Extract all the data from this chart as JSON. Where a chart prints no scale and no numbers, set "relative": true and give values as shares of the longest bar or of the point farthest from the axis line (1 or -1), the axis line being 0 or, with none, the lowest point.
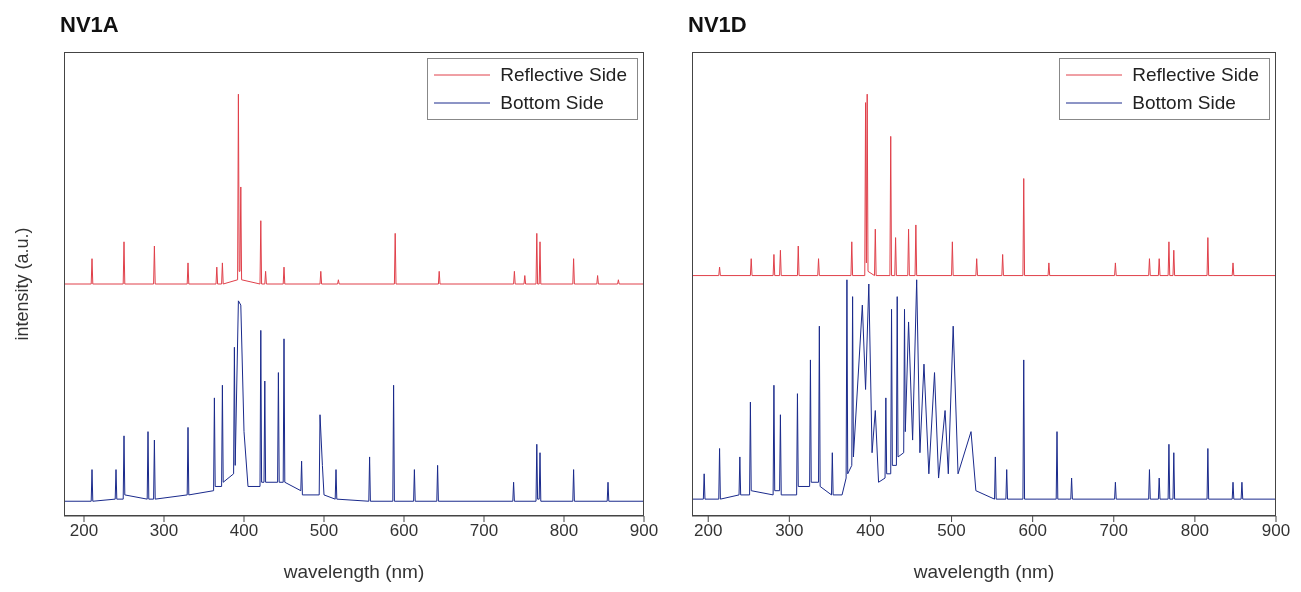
{
  "chart_data": [
    {
      "type": "line",
      "title": "NV1A",
      "xlabel": "wavelength (nm)",
      "ylabel": "intensity (a.u.)",
      "relative": true,
      "xlim": [
        175,
        900
      ],
      "xticks": [
        200,
        300,
        400,
        500,
        600,
        700,
        800,
        900
      ],
      "legend": "top right",
      "grid": false,
      "series": [
        {
          "name": "Reflective Side",
          "color": "#e0404a",
          "x": [
            175,
            209,
            210,
            211,
            249,
            250,
            251,
            287,
            288,
            289,
            329,
            330,
            331,
            365,
            366,
            367,
            372,
            373,
            374,
            392,
            393,
            394,
            395,
            396,
            397,
            420,
            421,
            422,
            426,
            427,
            428,
            449,
            450,
            451,
            495,
            496,
            497,
            517,
            518,
            519,
            588,
            589,
            590,
            643,
            644,
            645,
            737,
            738,
            739,
            750,
            751,
            752,
            765,
            766,
            767,
            769,
            770,
            771,
            811,
            812,
            813,
            841,
            842,
            843,
            867,
            868,
            869,
            900
          ],
          "values": [
            0.55,
            0.55,
            0.61,
            0.55,
            0.55,
            0.65,
            0.55,
            0.55,
            0.64,
            0.55,
            0.55,
            0.6,
            0.55,
            0.55,
            0.59,
            0.55,
            0.55,
            0.6,
            0.55,
            0.56,
            1.0,
            0.58,
            0.58,
            0.78,
            0.56,
            0.55,
            0.7,
            0.55,
            0.55,
            0.58,
            0.55,
            0.55,
            0.59,
            0.55,
            0.55,
            0.58,
            0.55,
            0.55,
            0.56,
            0.55,
            0.55,
            0.67,
            0.55,
            0.55,
            0.58,
            0.55,
            0.55,
            0.58,
            0.55,
            0.55,
            0.57,
            0.55,
            0.55,
            0.67,
            0.55,
            0.55,
            0.65,
            0.55,
            0.55,
            0.61,
            0.55,
            0.55,
            0.57,
            0.55,
            0.55,
            0.56,
            0.55,
            0.55
          ]
        },
        {
          "name": "Bottom Side",
          "color": "#1a2a8c",
          "x": [
            175,
            209,
            210,
            211,
            239,
            240,
            241,
            249,
            250,
            251,
            279,
            280,
            281,
            287,
            288,
            289,
            329,
            330,
            331,
            362,
            363,
            364,
            372,
            373,
            374,
            387,
            388,
            389,
            393,
            396,
            400,
            405,
            420,
            421,
            422,
            425,
            426,
            427,
            442,
            443,
            444,
            449,
            450,
            451,
            471,
            472,
            473,
            494,
            495,
            498,
            500,
            514,
            515,
            516,
            556,
            557,
            558,
            586,
            587,
            588,
            612,
            613,
            614,
            641,
            642,
            643,
            736,
            737,
            738,
            765,
            766,
            767,
            769,
            770,
            771,
            811,
            812,
            813,
            854,
            855,
            856,
            900
          ],
          "values": [
            0.035,
            0.035,
            0.11,
            0.035,
            0.04,
            0.11,
            0.04,
            0.04,
            0.19,
            0.05,
            0.04,
            0.2,
            0.04,
            0.04,
            0.18,
            0.04,
            0.05,
            0.21,
            0.05,
            0.06,
            0.28,
            0.07,
            0.07,
            0.31,
            0.08,
            0.1,
            0.4,
            0.12,
            0.51,
            0.5,
            0.2,
            0.07,
            0.07,
            0.44,
            0.08,
            0.08,
            0.32,
            0.08,
            0.08,
            0.34,
            0.08,
            0.08,
            0.42,
            0.08,
            0.06,
            0.13,
            0.05,
            0.05,
            0.24,
            0.12,
            0.05,
            0.04,
            0.11,
            0.04,
            0.035,
            0.14,
            0.035,
            0.035,
            0.31,
            0.035,
            0.035,
            0.11,
            0.035,
            0.035,
            0.12,
            0.035,
            0.035,
            0.08,
            0.035,
            0.035,
            0.17,
            0.04,
            0.04,
            0.15,
            0.035,
            0.035,
            0.11,
            0.035,
            0.035,
            0.08,
            0.035,
            0.035
          ]
        }
      ]
    },
    {
      "type": "line",
      "title": "NV1D",
      "xlabel": "wavelength (nm)",
      "relative": true,
      "xlim": [
        180,
        900
      ],
      "xticks": [
        200,
        300,
        400,
        500,
        600,
        700,
        800,
        900
      ],
      "legend": "top right",
      "grid": false,
      "series": [
        {
          "name": "Reflective Side",
          "color": "#e0404a",
          "x": [
            180,
            213,
            214,
            215,
            252,
            253,
            254,
            280,
            281,
            282,
            288,
            289,
            290,
            310,
            311,
            312,
            335,
            336,
            337,
            376,
            377,
            378,
            393,
            394,
            395,
            396,
            397,
            405,
            406,
            407,
            424,
            425,
            426,
            430,
            431,
            432,
            446,
            447,
            448,
            455,
            456,
            457,
            500,
            501,
            502,
            530,
            531,
            532,
            562,
            563,
            564,
            588,
            589,
            590,
            619,
            620,
            621,
            701,
            702,
            703,
            743,
            744,
            745,
            755,
            756,
            757,
            767,
            768,
            769,
            773,
            774,
            775,
            815,
            816,
            817,
            846,
            847,
            848,
            900
          ],
          "values": [
            0.57,
            0.57,
            0.59,
            0.57,
            0.57,
            0.61,
            0.57,
            0.57,
            0.62,
            0.57,
            0.57,
            0.63,
            0.57,
            0.57,
            0.64,
            0.57,
            0.57,
            0.61,
            0.57,
            0.57,
            0.65,
            0.57,
            0.57,
            0.98,
            0.6,
            1.0,
            0.58,
            0.57,
            0.68,
            0.57,
            0.57,
            0.9,
            0.57,
            0.57,
            0.66,
            0.57,
            0.57,
            0.68,
            0.57,
            0.57,
            0.69,
            0.57,
            0.57,
            0.65,
            0.57,
            0.57,
            0.61,
            0.57,
            0.57,
            0.62,
            0.57,
            0.57,
            0.8,
            0.57,
            0.57,
            0.6,
            0.57,
            0.57,
            0.6,
            0.57,
            0.57,
            0.61,
            0.57,
            0.57,
            0.61,
            0.57,
            0.57,
            0.65,
            0.57,
            0.57,
            0.63,
            0.57,
            0.57,
            0.66,
            0.57,
            0.57,
            0.6,
            0.57,
            0.57
          ]
        },
        {
          "name": "Bottom Side",
          "color": "#1a2a8c",
          "x": [
            180,
            194,
            195,
            196,
            213,
            214,
            215,
            238,
            239,
            240,
            251,
            252,
            253,
            280,
            281,
            282,
            288,
            289,
            290,
            309,
            310,
            311,
            325,
            326,
            327,
            336,
            337,
            338,
            352,
            353,
            354,
            365,
            370,
            371,
            372,
            377,
            378,
            379,
            390,
            394,
            398,
            402,
            406,
            410,
            418,
            419,
            420,
            425,
            426,
            427,
            432,
            433,
            434,
            441,
            442,
            443,
            447,
            452,
            457,
            461,
            466,
            472,
            479,
            484,
            492,
            496,
            502,
            508,
            524,
            530,
            553,
            554,
            555,
            567,
            568,
            569,
            588,
            589,
            590,
            629,
            630,
            631,
            647,
            648,
            649,
            701,
            702,
            703,
            743,
            744,
            745,
            755,
            756,
            757,
            767,
            768,
            769,
            773,
            774,
            775,
            815,
            816,
            817,
            846,
            847,
            848,
            857,
            858,
            859,
            900
          ],
          "values": [
            0.04,
            0.04,
            0.1,
            0.04,
            0.04,
            0.16,
            0.04,
            0.05,
            0.14,
            0.05,
            0.05,
            0.27,
            0.06,
            0.05,
            0.31,
            0.06,
            0.06,
            0.24,
            0.05,
            0.05,
            0.29,
            0.07,
            0.07,
            0.37,
            0.08,
            0.08,
            0.45,
            0.07,
            0.05,
            0.15,
            0.05,
            0.05,
            0.09,
            0.56,
            0.1,
            0.12,
            0.52,
            0.14,
            0.5,
            0.3,
            0.55,
            0.15,
            0.25,
            0.08,
            0.09,
            0.28,
            0.1,
            0.1,
            0.49,
            0.12,
            0.12,
            0.52,
            0.14,
            0.15,
            0.49,
            0.2,
            0.46,
            0.18,
            0.56,
            0.15,
            0.36,
            0.1,
            0.34,
            0.09,
            0.25,
            0.1,
            0.45,
            0.1,
            0.2,
            0.06,
            0.04,
            0.14,
            0.04,
            0.04,
            0.11,
            0.04,
            0.04,
            0.37,
            0.04,
            0.04,
            0.2,
            0.04,
            0.04,
            0.09,
            0.04,
            0.04,
            0.08,
            0.04,
            0.04,
            0.11,
            0.04,
            0.04,
            0.09,
            0.04,
            0.04,
            0.17,
            0.04,
            0.04,
            0.15,
            0.04,
            0.04,
            0.16,
            0.04,
            0.04,
            0.08,
            0.04,
            0.04,
            0.08,
            0.04,
            0.04
          ]
        }
      ]
    }
  ]
}
